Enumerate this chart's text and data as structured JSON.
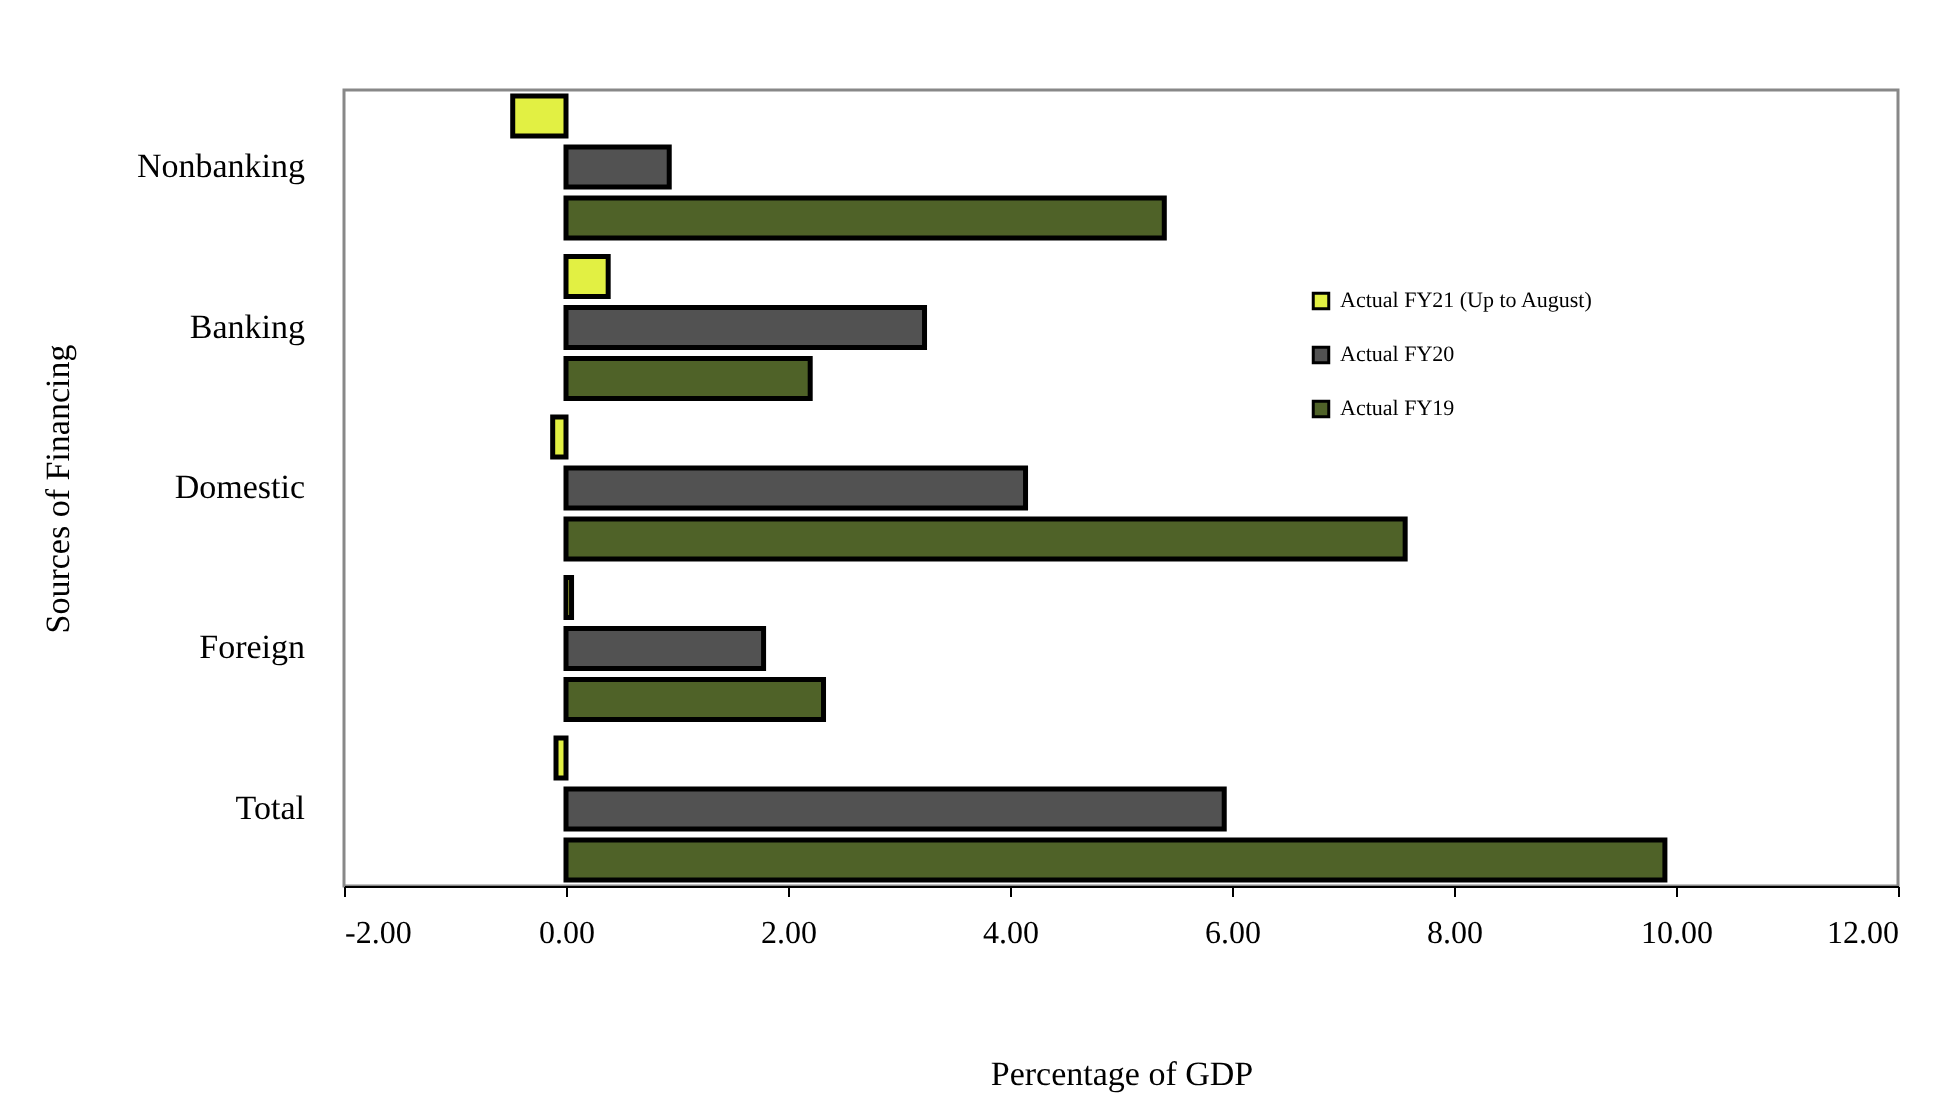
{
  "chart_data": {
    "type": "bar",
    "orientation": "horizontal",
    "xlabel": "Percentage of  GDP",
    "ylabel": "Sources of Financing",
    "categories": [
      "Nonbanking",
      "Banking",
      "Domestic",
      "Foreign",
      "Total"
    ],
    "series": [
      {
        "name": "Actual FY21 (Up to August)",
        "color": "#e2f043",
        "values": [
          -0.48,
          0.38,
          -0.12,
          0.05,
          -0.09
        ]
      },
      {
        "name": "Actual FY20",
        "color": "#525252",
        "values": [
          0.93,
          3.23,
          4.14,
          1.78,
          5.93
        ]
      },
      {
        "name": "Actual FY19",
        "color": "#4f6228",
        "values": [
          5.39,
          2.2,
          7.56,
          2.32,
          9.9
        ]
      }
    ],
    "xlim": [
      -2,
      12
    ],
    "xticks": [
      {
        "value": -2,
        "label": "-2.00"
      },
      {
        "value": 0,
        "label": "0.00"
      },
      {
        "value": 2,
        "label": "2.00"
      },
      {
        "value": 4,
        "label": "4.00"
      },
      {
        "value": 6,
        "label": "6.00"
      },
      {
        "value": 8,
        "label": "8.00"
      },
      {
        "value": 10,
        "label": "10.00"
      },
      {
        "value": 12,
        "label": "12.00"
      }
    ],
    "grid": false,
    "legend": "right"
  }
}
